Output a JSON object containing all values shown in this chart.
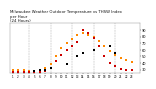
{
  "title": "Milwaukee Weather Outdoor Temperature vs THSW Index\nper Hour\n(24 Hours)",
  "title_fontsize": 2.8,
  "background_color": "#ffffff",
  "xlim": [
    0.5,
    24.5
  ],
  "ylim": [
    25,
    100
  ],
  "yticks": [
    30,
    40,
    50,
    60,
    70,
    80,
    90
  ],
  "ytick_fontsize": 2.5,
  "xticks": [
    1,
    2,
    3,
    4,
    5,
    6,
    7,
    8,
    9,
    10,
    11,
    12,
    13,
    14,
    15,
    16,
    17,
    18,
    19,
    20,
    21,
    22,
    23
  ],
  "xtick_labels": [
    "1",
    "2",
    "3",
    "4",
    "5",
    "6",
    "7",
    "8",
    "9",
    "10",
    "11",
    "12",
    "13",
    "14",
    "15",
    "16",
    "17",
    "18",
    "19",
    "20",
    "21",
    "22",
    "23"
  ],
  "xtick_fontsize": 2.0,
  "grid_x": [
    4,
    8,
    12,
    16,
    20
  ],
  "temp_color": "#ff8800",
  "thsw_color": "#cc0000",
  "black_color": "#000000",
  "dot_size": 2.0,
  "temp_hours": [
    1,
    2,
    3,
    4,
    5,
    6,
    7,
    8,
    9,
    10,
    11,
    12,
    13,
    14,
    15,
    16,
    17,
    18,
    19,
    20,
    21,
    22,
    23
  ],
  "temp_values": [
    30,
    29,
    29,
    28,
    28,
    29,
    32,
    38,
    50,
    62,
    70,
    76,
    82,
    85,
    83,
    80,
    74,
    65,
    58,
    52,
    47,
    44,
    42
  ],
  "thsw_hours": [
    1,
    2,
    3,
    4,
    5,
    6,
    7,
    8,
    9,
    10,
    11,
    12,
    13,
    14,
    15,
    16,
    17,
    18,
    19,
    20,
    21,
    22,
    23
  ],
  "thsw_values": [
    27,
    27,
    26,
    26,
    26,
    26,
    28,
    32,
    43,
    52,
    59,
    66,
    72,
    90,
    85,
    78,
    65,
    50,
    40,
    35,
    31,
    30,
    29
  ],
  "black_hours": [
    5,
    6,
    7,
    8,
    11,
    13,
    14,
    16,
    19,
    20
  ],
  "black_values": [
    28,
    29,
    30,
    32,
    38,
    50,
    55,
    60,
    65,
    55
  ]
}
